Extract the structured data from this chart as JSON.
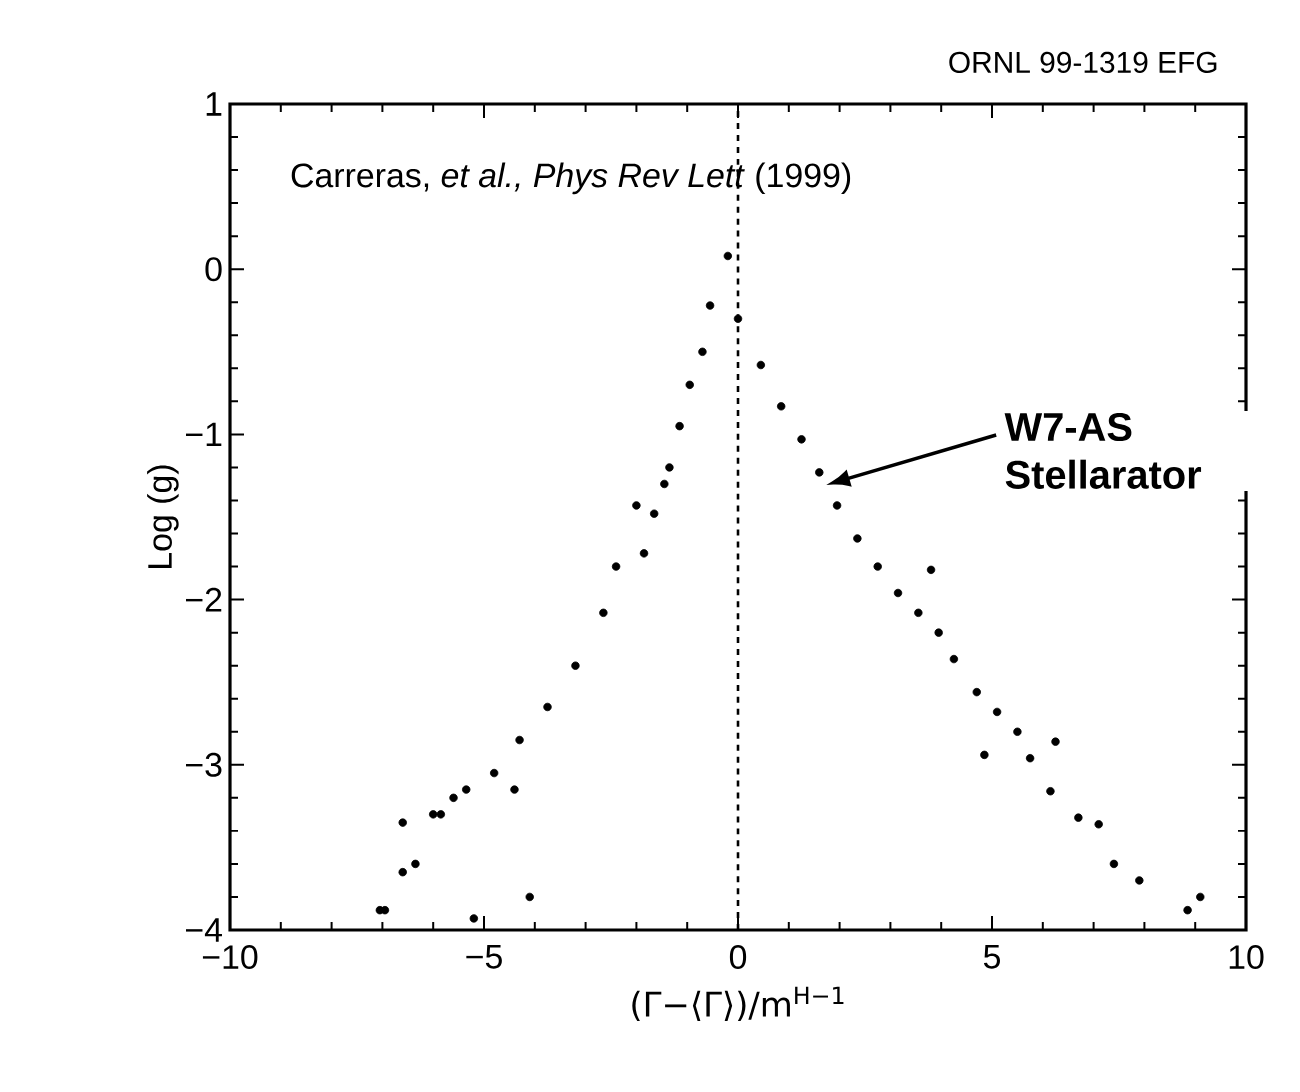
{
  "chart_data": {
    "type": "scatter",
    "xlabel": "(Γ−⟨Γ⟩)/m$^{H−1}$",
    "ylabel": "Log (g)",
    "xlim": [
      -10,
      10
    ],
    "ylim": [
      -4,
      1
    ],
    "xticks": [
      {
        "value": -10,
        "label": "−10"
      },
      {
        "value": -5,
        "label": "−5"
      },
      0,
      5,
      10
    ],
    "yticks": [
      {
        "value": -4,
        "label": "−4"
      },
      {
        "value": -3,
        "label": "−3"
      },
      {
        "value": -2,
        "label": "−2"
      },
      {
        "value": -1,
        "label": "−1"
      },
      0,
      1
    ],
    "marker": "circle",
    "grid": false,
    "series": [
      {
        "color": "#000000",
        "x": [
          -7.05,
          -6.95,
          -6.6,
          -6.6,
          -6.35,
          -6.0,
          -5.85,
          -5.6,
          -5.35,
          -5.2,
          -4.8,
          -4.4,
          -4.3,
          -4.1,
          -3.75,
          -3.2,
          -2.65,
          -2.4,
          -2.0,
          -1.85,
          -1.65,
          -1.45,
          -1.35,
          -1.15,
          -0.95,
          -0.7,
          -0.55,
          -0.2,
          0.0,
          0.45,
          0.85,
          1.25,
          1.6,
          1.95,
          2.35,
          2.75,
          3.15,
          3.55,
          3.8,
          3.95,
          4.25,
          4.7,
          4.85,
          5.1,
          5.5,
          5.75,
          6.15,
          6.25,
          6.7,
          7.1,
          7.4,
          7.9,
          8.85,
          9.1
        ],
        "values": [
          -3.88,
          -3.88,
          -3.35,
          -3.65,
          -3.6,
          -3.3,
          -3.3,
          -3.2,
          -3.15,
          -3.93,
          -3.05,
          -3.15,
          -2.85,
          -3.8,
          -2.65,
          -2.4,
          -2.08,
          -1.8,
          -1.43,
          -1.72,
          -1.48,
          -1.3,
          -1.2,
          -0.95,
          -0.7,
          -0.5,
          -0.22,
          0.08,
          -0.3,
          -0.58,
          -0.83,
          -1.03,
          -1.23,
          -1.43,
          -1.63,
          -1.8,
          -1.96,
          -2.08,
          -1.82,
          -2.2,
          -2.36,
          -2.56,
          -2.94,
          -2.68,
          -2.8,
          -2.96,
          -3.16,
          -2.86,
          -3.32,
          -3.36,
          -3.6,
          -3.7,
          -3.88,
          -3.8
        ]
      }
    ],
    "ref_lines": [
      {
        "axis": "x",
        "value": 0,
        "color": "#000000",
        "line_style": "dashed"
      }
    ],
    "annotations": [
      "ORNL 99-1319  EFG",
      "Carreras, *et al., Phys Rev Lett* (1999)",
      "W7-AS Stellarator"
    ]
  }
}
